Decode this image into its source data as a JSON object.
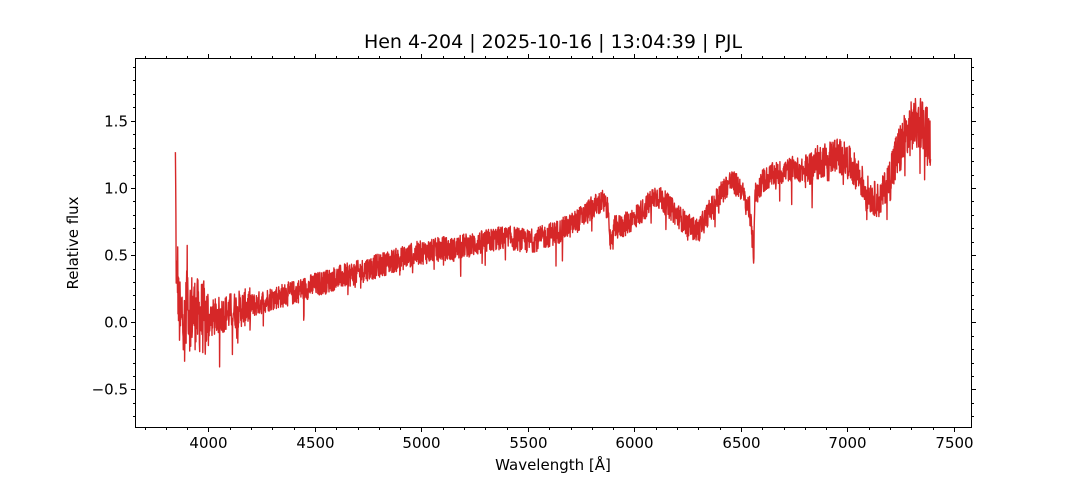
{
  "chart_data": {
    "type": "line",
    "title": "Hen 4-204 | 2025-10-16 | 13:04:39 | PJL",
    "xlabel": "Wavelength [Å]",
    "ylabel": "Relative flux",
    "xlim": [
      3660,
      7580
    ],
    "ylim": [
      -0.78,
      1.96
    ],
    "xticks": [
      4000,
      4500,
      5000,
      5500,
      6000,
      6500,
      7000,
      7500
    ],
    "yticks": [
      -0.5,
      0.0,
      0.5,
      1.0,
      1.5
    ],
    "xtick_labels": [
      "4000",
      "4500",
      "5000",
      "5500",
      "6000",
      "6500",
      "7000",
      "7500"
    ],
    "ytick_labels": [
      "−0.5",
      "0.0",
      "0.5",
      "1.0",
      "1.5"
    ],
    "x_minor_step": 100,
    "y_minor_step": 0.1,
    "grid": false,
    "series": [
      {
        "color": "#d62728",
        "x": [
          3845,
          3850,
          3855,
          3860,
          3870,
          3880,
          3890,
          3900,
          3910,
          3920,
          3950,
          4000,
          4050,
          4100,
          4150,
          4200,
          4250,
          4300,
          4350,
          4400,
          4450,
          4500,
          4550,
          4600,
          4650,
          4700,
          4750,
          4800,
          4850,
          4900,
          4950,
          5000,
          5050,
          5100,
          5150,
          5200,
          5250,
          5300,
          5350,
          5400,
          5450,
          5500,
          5550,
          5600,
          5650,
          5700,
          5750,
          5800,
          5850,
          5880,
          5890,
          5900,
          5950,
          6000,
          6050,
          6100,
          6150,
          6200,
          6250,
          6300,
          6350,
          6400,
          6450,
          6500,
          6520,
          6540,
          6560,
          6565,
          6580,
          6600,
          6650,
          6700,
          6750,
          6800,
          6850,
          6900,
          6950,
          7000,
          7050,
          7100,
          7150,
          7200,
          7250,
          7300,
          7350,
          7390
        ],
        "y": [
          1.18,
          0.2,
          0.4,
          0.1,
          0.0,
          0.12,
          -0.1,
          0.3,
          0.05,
          0.1,
          0.05,
          0.02,
          0.05,
          0.08,
          0.1,
          0.12,
          0.15,
          0.18,
          0.2,
          0.22,
          0.25,
          0.28,
          0.3,
          0.33,
          0.35,
          0.37,
          0.4,
          0.42,
          0.45,
          0.47,
          0.5,
          0.52,
          0.53,
          0.55,
          0.54,
          0.57,
          0.58,
          0.6,
          0.62,
          0.63,
          0.62,
          0.6,
          0.62,
          0.65,
          0.68,
          0.72,
          0.78,
          0.85,
          0.9,
          0.82,
          0.5,
          0.7,
          0.72,
          0.78,
          0.85,
          0.95,
          0.88,
          0.8,
          0.72,
          0.68,
          0.82,
          0.95,
          1.05,
          1.0,
          0.9,
          0.85,
          0.5,
          0.95,
          0.98,
          1.05,
          1.1,
          1.12,
          1.15,
          1.12,
          1.18,
          1.22,
          1.25,
          1.2,
          1.1,
          0.95,
          0.9,
          1.1,
          1.3,
          1.45,
          1.5,
          1.35
        ]
      }
    ]
  }
}
